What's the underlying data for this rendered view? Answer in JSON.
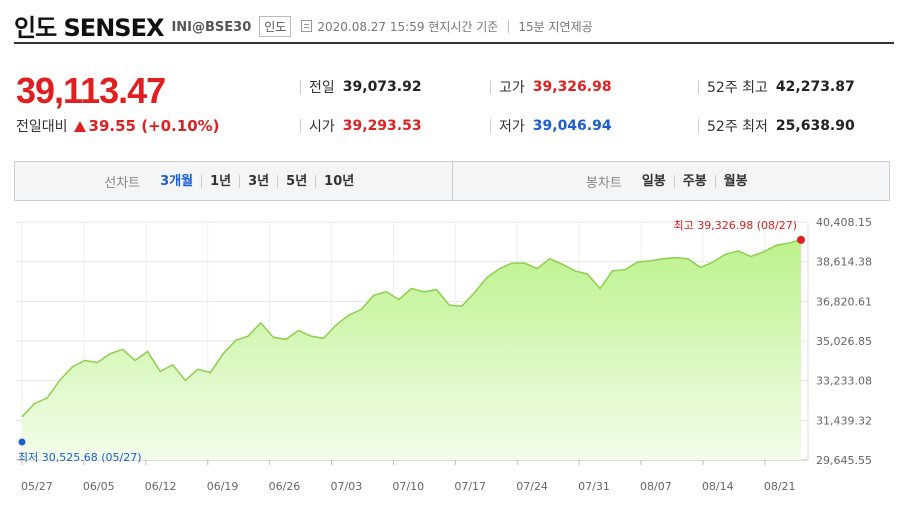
{
  "header": {
    "title": "인도 SENSEX",
    "code": "INI@BSE30",
    "country": "인도",
    "timestamp": "2020.08.27 15:59 현지시간 기준",
    "delay": "15분 지연제공"
  },
  "price": {
    "current": "39,113.47",
    "change_label": "전일대비",
    "change_value": "39.55 (+0.10%)"
  },
  "stats": {
    "prev_label": "전일",
    "prev": "39,073.92",
    "open_label": "시가",
    "open": "39,293.53",
    "high_label": "고가",
    "high": "39,326.98",
    "low_label": "저가",
    "low": "39,046.94",
    "w52_high_label": "52주 최고",
    "w52_high": "42,273.87",
    "w52_low_label": "52주 최저",
    "w52_low": "25,638.90"
  },
  "tabs": {
    "line_label": "선차트",
    "line_periods": [
      "3개월",
      "1년",
      "3년",
      "5년",
      "10년"
    ],
    "active": "3개월",
    "candle_label": "봉차트",
    "candle_periods": [
      "일봉",
      "주봉",
      "월봉"
    ]
  },
  "colors": {
    "up": "#e02020",
    "down": "#1a5fd0",
    "line": "#8ccf4e",
    "area_top": "#bdf28c"
  },
  "chart_data": {
    "type": "area",
    "x_ticks": [
      "05/27",
      "06/05",
      "06/12",
      "06/19",
      "06/26",
      "07/03",
      "07/10",
      "07/17",
      "07/24",
      "07/31",
      "08/07",
      "08/14",
      "08/21"
    ],
    "y_ticks": [
      "40,408.15",
      "38,614.38",
      "36,820.61",
      "35,026.85",
      "33,233.08",
      "31,439.32",
      "29,645.55"
    ],
    "ylim": [
      29645.55,
      40408.15
    ],
    "grid": true,
    "series": [
      {
        "values": [
          31600,
          32200,
          32450,
          33250,
          33850,
          34150,
          34050,
          34450,
          34650,
          34150,
          34550,
          33650,
          33950,
          33250,
          33750,
          33600,
          34450,
          35050,
          35250,
          35850,
          35200,
          35100,
          35500,
          35250,
          35150,
          35750,
          36200,
          36450,
          37100,
          37250,
          36900,
          37400,
          37250,
          37350,
          36650,
          36600,
          37200,
          37900,
          38300,
          38550,
          38550,
          38300,
          38750,
          38500,
          38200,
          38050,
          37400,
          38200,
          38250,
          38600,
          38650,
          38750,
          38800,
          38750,
          38350,
          38600,
          38950,
          39100,
          38850,
          39050,
          39350,
          39450,
          39600
        ]
      }
    ],
    "annotations": {
      "high": "최고 39,326.98 (08/27)",
      "low": "최저 30,525.68 (05/27)"
    }
  }
}
